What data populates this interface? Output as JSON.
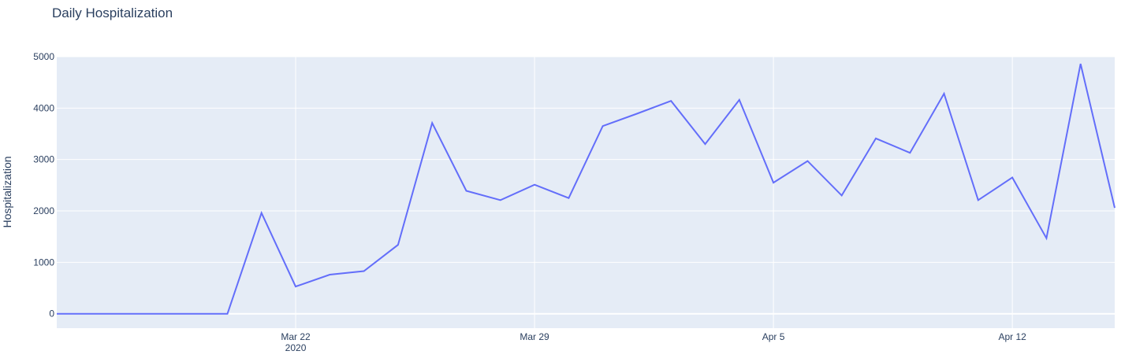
{
  "chart_data": {
    "type": "line",
    "title": "Daily Hospitalization",
    "xlabel": "",
    "ylabel": "Hospitalization",
    "x_range": [
      "2020-03-15",
      "2020-04-15"
    ],
    "ylim": [
      -280,
      5000
    ],
    "y_ticks": [
      0,
      1000,
      2000,
      3000,
      4000,
      5000
    ],
    "x_ticks": [
      {
        "date": "2020-03-22",
        "label": "Mar 22",
        "sublabel": "2020"
      },
      {
        "date": "2020-03-29",
        "label": "Mar 29",
        "sublabel": ""
      },
      {
        "date": "2020-04-05",
        "label": "Apr 5",
        "sublabel": ""
      },
      {
        "date": "2020-04-12",
        "label": "Apr 12",
        "sublabel": ""
      }
    ],
    "grid": true,
    "colors": {
      "line": "#636efa",
      "plot_bg": "#e5ecf6",
      "grid": "#ffffff",
      "text": "#2a3f5f"
    },
    "series": [
      {
        "x": [
          "2020-03-15",
          "2020-03-16",
          "2020-03-17",
          "2020-03-18",
          "2020-03-19",
          "2020-03-20",
          "2020-03-21",
          "2020-03-22",
          "2020-03-23",
          "2020-03-24",
          "2020-03-25",
          "2020-03-26",
          "2020-03-27",
          "2020-03-28",
          "2020-03-29",
          "2020-03-30",
          "2020-03-31",
          "2020-04-01",
          "2020-04-02",
          "2020-04-03",
          "2020-04-04",
          "2020-04-05",
          "2020-04-06",
          "2020-04-07",
          "2020-04-08",
          "2020-04-09",
          "2020-04-10",
          "2020-04-11",
          "2020-04-12",
          "2020-04-13",
          "2020-04-14",
          "2020-04-15"
        ],
        "y": [
          0,
          0,
          0,
          0,
          0,
          0,
          1960,
          530,
          760,
          830,
          1340,
          3710,
          2390,
          2210,
          2510,
          2250,
          3650,
          3890,
          4140,
          3300,
          4160,
          2550,
          2970,
          2300,
          3410,
          3130,
          4280,
          2210,
          2650,
          1470,
          4860,
          2060
        ]
      }
    ]
  }
}
